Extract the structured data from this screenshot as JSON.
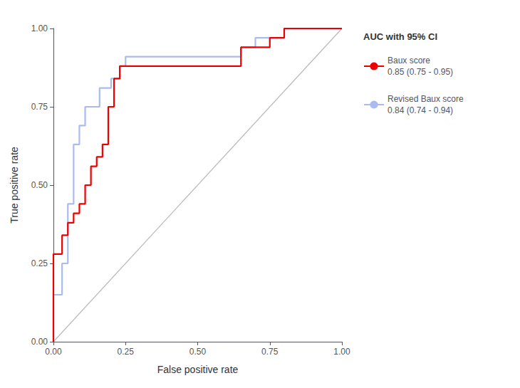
{
  "chart_data": {
    "type": "line",
    "x_label": "False positive rate",
    "y_label": "True positive rate",
    "legend_title": "AUC with 95% CI",
    "series": [
      {
        "color": "#BBBBBB",
        "x": [
          0.0,
          1.0
        ],
        "values": [
          0.0,
          1.0
        ]
      },
      {
        "name": "Baux score\n0.85 (0.75 - 0.95)",
        "color": "#EE0000",
        "x": [
          0.0,
          0.0,
          0.03,
          0.03,
          0.05,
          0.05,
          0.07,
          0.07,
          0.09,
          0.09,
          0.11,
          0.11,
          0.13,
          0.13,
          0.15,
          0.15,
          0.17,
          0.17,
          0.19,
          0.19,
          0.21,
          0.21,
          0.23,
          0.23,
          0.25,
          0.25,
          0.65,
          0.65,
          0.7,
          0.7,
          0.75,
          0.75,
          0.8,
          0.8,
          1.0
        ],
        "values": [
          0.0,
          0.28,
          0.28,
          0.34,
          0.34,
          0.38,
          0.38,
          0.41,
          0.41,
          0.44,
          0.44,
          0.5,
          0.5,
          0.56,
          0.56,
          0.59,
          0.59,
          0.63,
          0.63,
          0.75,
          0.75,
          0.84,
          0.84,
          0.88,
          0.88,
          0.88,
          0.88,
          0.94,
          0.94,
          0.94,
          0.94,
          0.97,
          0.97,
          1.0,
          1.0
        ]
      },
      {
        "name": "Revised Baux score\n0.84 (0.74 - 0.94)",
        "color": "#AABBEE",
        "x": [
          0.0,
          0.0,
          0.03,
          0.03,
          0.05,
          0.05,
          0.07,
          0.07,
          0.09,
          0.09,
          0.11,
          0.11,
          0.16,
          0.16,
          0.2,
          0.2,
          0.23,
          0.23,
          0.25,
          0.25,
          0.5,
          0.5,
          0.65,
          0.65,
          0.7,
          0.7,
          0.8,
          0.8,
          1.0
        ],
        "values": [
          0.0,
          0.15,
          0.15,
          0.25,
          0.25,
          0.44,
          0.44,
          0.63,
          0.63,
          0.69,
          0.69,
          0.75,
          0.75,
          0.81,
          0.81,
          0.84,
          0.84,
          0.88,
          0.88,
          0.91,
          0.91,
          0.91,
          0.91,
          0.94,
          0.94,
          0.97,
          0.97,
          1.0,
          1.0
        ]
      }
    ],
    "xlim": [
      0.0,
      1.0
    ],
    "ylim": [
      0.0,
      1.0
    ],
    "xticks": [
      {
        "value": 0.0,
        "label": "0.00"
      },
      {
        "value": 0.25,
        "label": "0.25"
      },
      {
        "value": 0.5,
        "label": "0.50"
      },
      {
        "value": 0.75,
        "label": "0.75"
      },
      {
        "value": 1.0,
        "label": "1.00"
      }
    ],
    "yticks": [
      {
        "value": 0.0,
        "label": "0.00"
      },
      {
        "value": 0.25,
        "label": "0.25"
      },
      {
        "value": 0.5,
        "label": "0.50"
      },
      {
        "value": 0.75,
        "label": "0.75"
      },
      {
        "value": 1.0,
        "label": "1.00"
      }
    ],
    "grid": false,
    "legend": "right"
  }
}
